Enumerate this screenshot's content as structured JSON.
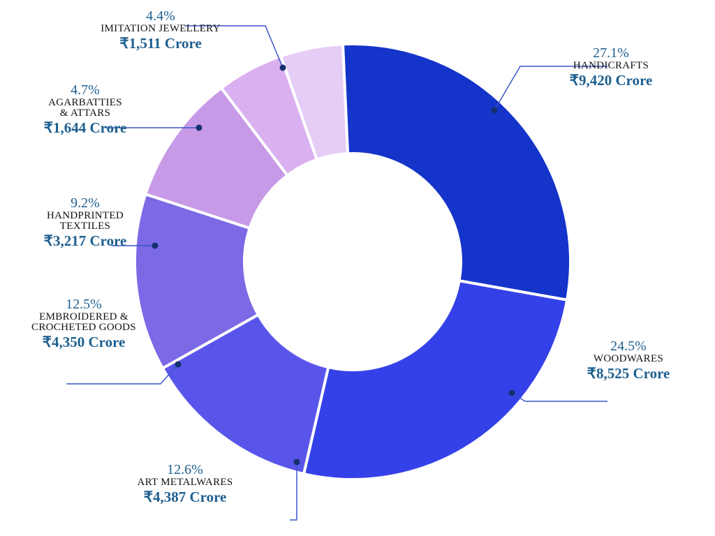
{
  "chart_data": {
    "type": "pie",
    "categories": [
      "HANDICRAFTS",
      "WOODWARES",
      "ART METALWARES",
      "EMBROIDERED &\nCROCHETED GOODS",
      "HANDPRINTED\nTEXTILES",
      "AGARBATTIES\n& ATTARS",
      "IMITATION JEWELLERY"
    ],
    "values": [
      27.1,
      24.5,
      12.6,
      12.5,
      9.2,
      4.7,
      4.4
    ],
    "value_labels": [
      "27.1%",
      "24.5%",
      "12.6%",
      "12.5%",
      "9.2%",
      "4.7%",
      "4.4%"
    ],
    "amount_labels": [
      "₹9,420 Crore",
      "₹8,525 Crore",
      "₹4,387 Crore",
      "₹4,350 Crore",
      "₹3,217 Crore",
      "₹1,644 Crore",
      "₹1,511 Crore"
    ],
    "colors": [
      "#1534c9",
      "#3541e8",
      "#5a55ea",
      "#7b69e6",
      "#c79ae8",
      "#dbb0f1",
      "#e6cdf6"
    ]
  }
}
